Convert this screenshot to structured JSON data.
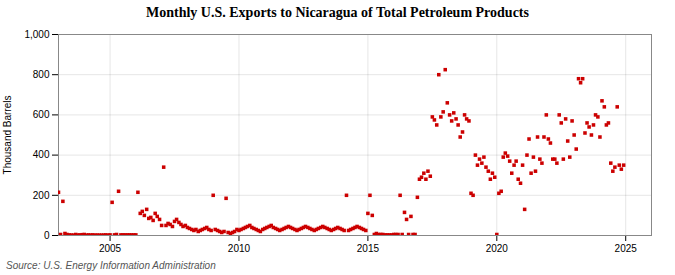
{
  "chart_data": {
    "type": "scatter",
    "title": "Monthly U.S. Exports to Nicaragua of Total Petroleum Products",
    "ylabel": "Thousand Barrels",
    "annotations": [
      "Source: U.S. Energy Information Administration"
    ],
    "color": "#cc0000",
    "marker": "square",
    "grid": true,
    "xlim": [
      2003.0,
      2026.0
    ],
    "xticks": [
      2005,
      2010,
      2015,
      2020,
      2025
    ],
    "ylim": [
      0,
      1000
    ],
    "yticks": [
      0,
      200,
      400,
      600,
      800,
      {
        "value": 1000,
        "label": "1,000"
      }
    ],
    "x": [
      2003.0,
      2003.08,
      2003.17,
      2003.25,
      2003.33,
      2003.42,
      2003.5,
      2003.58,
      2003.67,
      2003.75,
      2003.83,
      2003.92,
      2004.0,
      2004.08,
      2004.17,
      2004.25,
      2004.33,
      2004.42,
      2004.5,
      2004.58,
      2004.67,
      2004.75,
      2004.83,
      2004.92,
      2005.0,
      2005.08,
      2005.17,
      2005.25,
      2005.33,
      2005.42,
      2005.5,
      2005.58,
      2005.67,
      2005.75,
      2005.83,
      2005.92,
      2006.0,
      2006.08,
      2006.17,
      2006.25,
      2006.33,
      2006.42,
      2006.5,
      2006.58,
      2006.67,
      2006.75,
      2006.83,
      2006.92,
      2007.0,
      2007.08,
      2007.17,
      2007.25,
      2007.33,
      2007.42,
      2007.5,
      2007.58,
      2007.67,
      2007.75,
      2007.83,
      2007.92,
      2008.0,
      2008.08,
      2008.17,
      2008.25,
      2008.33,
      2008.42,
      2008.5,
      2008.58,
      2008.67,
      2008.75,
      2008.83,
      2008.92,
      2009.0,
      2009.08,
      2009.17,
      2009.25,
      2009.33,
      2009.42,
      2009.5,
      2009.58,
      2009.67,
      2009.75,
      2009.83,
      2009.92,
      2010.0,
      2010.08,
      2010.17,
      2010.25,
      2010.33,
      2010.42,
      2010.5,
      2010.58,
      2010.67,
      2010.75,
      2010.83,
      2010.92,
      2011.0,
      2011.08,
      2011.17,
      2011.25,
      2011.33,
      2011.42,
      2011.5,
      2011.58,
      2011.67,
      2011.75,
      2011.83,
      2011.92,
      2012.0,
      2012.08,
      2012.17,
      2012.25,
      2012.33,
      2012.42,
      2012.5,
      2012.58,
      2012.67,
      2012.75,
      2012.83,
      2012.92,
      2013.0,
      2013.08,
      2013.17,
      2013.25,
      2013.33,
      2013.42,
      2013.5,
      2013.58,
      2013.67,
      2013.75,
      2013.83,
      2013.92,
      2014.0,
      2014.08,
      2014.17,
      2014.25,
      2014.33,
      2014.42,
      2014.5,
      2014.58,
      2014.67,
      2014.75,
      2014.83,
      2014.92,
      2015.0,
      2015.08,
      2015.17,
      2015.25,
      2015.33,
      2015.42,
      2015.5,
      2015.58,
      2015.67,
      2015.75,
      2015.83,
      2015.92,
      2016.0,
      2016.08,
      2016.17,
      2016.25,
      2016.33,
      2016.42,
      2016.5,
      2016.58,
      2016.67,
      2016.75,
      2016.83,
      2016.92,
      2017.0,
      2017.08,
      2017.17,
      2017.25,
      2017.33,
      2017.42,
      2017.5,
      2017.58,
      2017.67,
      2017.75,
      2017.83,
      2017.92,
      2018.0,
      2018.08,
      2018.17,
      2018.25,
      2018.33,
      2018.42,
      2018.5,
      2018.58,
      2018.67,
      2018.75,
      2018.83,
      2018.92,
      2019.0,
      2019.08,
      2019.17,
      2019.25,
      2019.33,
      2019.42,
      2019.5,
      2019.58,
      2019.67,
      2019.75,
      2019.83,
      2019.92,
      2020.0,
      2020.08,
      2020.17,
      2020.25,
      2020.33,
      2020.42,
      2020.5,
      2020.58,
      2020.67,
      2020.75,
      2020.83,
      2020.92,
      2021.0,
      2021.08,
      2021.17,
      2021.25,
      2021.33,
      2021.42,
      2021.5,
      2021.58,
      2021.67,
      2021.75,
      2021.83,
      2021.92,
      2022.0,
      2022.08,
      2022.17,
      2022.25,
      2022.33,
      2022.42,
      2022.5,
      2022.58,
      2022.67,
      2022.75,
      2022.83,
      2022.92,
      2023.0,
      2023.08,
      2023.17,
      2023.25,
      2023.33,
      2023.42,
      2023.5,
      2023.58,
      2023.67,
      2023.75,
      2023.83,
      2023.92,
      2024.0,
      2024.08,
      2024.17,
      2024.25,
      2024.33,
      2024.42,
      2024.5,
      2024.58,
      2024.67,
      2024.75,
      2024.83,
      2024.92
    ],
    "values": [
      215,
      5,
      170,
      10,
      5,
      3,
      2,
      2,
      5,
      2,
      3,
      4,
      5,
      2,
      3,
      2,
      3,
      2,
      2,
      2,
      2,
      2,
      3,
      2,
      3,
      165,
      3,
      5,
      220,
      3,
      3,
      3,
      3,
      3,
      3,
      3,
      3,
      215,
      110,
      120,
      100,
      130,
      85,
      90,
      75,
      110,
      95,
      80,
      50,
      340,
      50,
      60,
      55,
      45,
      70,
      80,
      65,
      55,
      45,
      50,
      40,
      35,
      30,
      25,
      30,
      20,
      25,
      30,
      35,
      40,
      30,
      25,
      200,
      30,
      25,
      20,
      15,
      20,
      185,
      15,
      10,
      15,
      20,
      30,
      25,
      30,
      35,
      40,
      45,
      50,
      40,
      35,
      30,
      25,
      20,
      30,
      35,
      40,
      45,
      50,
      40,
      35,
      30,
      25,
      30,
      35,
      40,
      45,
      40,
      35,
      30,
      25,
      30,
      35,
      40,
      45,
      40,
      35,
      30,
      25,
      30,
      35,
      40,
      45,
      40,
      35,
      30,
      25,
      30,
      35,
      40,
      35,
      30,
      25,
      200,
      25,
      30,
      35,
      40,
      45,
      40,
      35,
      30,
      25,
      110,
      200,
      100,
      5,
      10,
      5,
      5,
      5,
      3,
      3,
      3,
      3,
      5,
      5,
      5,
      200,
      5,
      115,
      80,
      5,
      95,
      5,
      5,
      190,
      280,
      290,
      310,
      280,
      320,
      295,
      590,
      575,
      550,
      800,
      590,
      615,
      825,
      660,
      600,
      570,
      610,
      580,
      550,
      490,
      515,
      600,
      580,
      570,
      210,
      200,
      400,
      350,
      380,
      360,
      390,
      340,
      320,
      280,
      310,
      290,
      5,
      210,
      220,
      390,
      410,
      395,
      370,
      310,
      350,
      370,
      280,
      260,
      350,
      130,
      400,
      480,
      310,
      390,
      320,
      490,
      380,
      360,
      490,
      600,
      480,
      460,
      380,
      380,
      360,
      600,
      560,
      380,
      580,
      470,
      390,
      570,
      500,
      430,
      780,
      760,
      780,
      510,
      560,
      540,
      500,
      550,
      600,
      590,
      490,
      670,
      640,
      550,
      560,
      360,
      320,
      340,
      640,
      350,
      330,
      350
    ]
  }
}
